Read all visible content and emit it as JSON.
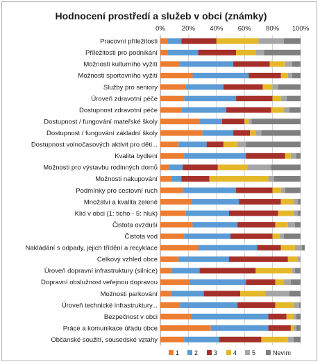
{
  "chart_data": {
    "type": "bar",
    "orientation": "horizontal",
    "stacked": "percent",
    "title": "Hodnocení prostředí a služeb v obci (známky)",
    "xlim": [
      0,
      100
    ],
    "x_ticks": [
      "0%",
      "20%",
      "40%",
      "60%",
      "80%",
      "100%"
    ],
    "grid": true,
    "legend_position": "bottom",
    "categories": [
      "Pracovní příležitosti",
      "Příležitosti pro podnikání",
      "Možnosti kulturního vyžití",
      "Možnosti sportovního vyžití",
      "Služby pro seniory",
      "Úroveň zdravotní péče",
      "Dostupnost zdravotní péče",
      "Dostupnost / fungování mateřské školy",
      "Dostupnost / fungování základní školy",
      "Dostupnost volnočasových aktivit pro děti...",
      "Kvalita bydlení",
      "Možnosti pro výstavbu rodinných domů",
      "Možnosti nakupování",
      "Podmínky pro cestovní ruch",
      "Množství a kvalita zeleně",
      "Klid v obci (1: ticho - 5: hluk)",
      "Čistota ovzduší",
      "Čistota vod",
      "Nakládání s odpady, jejich třídění a recyklace",
      "Celkový vzhled obce",
      "Úroveň dopravní infrastruktury (silnice)",
      "Dopravní obslužnost veřejnou dopravou",
      "Možnosti parkování",
      "Úroveň technické infrastruktury...",
      "Bezpečnost v obci",
      "Práce a komunikace úřadu obce",
      "Občanské soužití, sousedské vztahy"
    ],
    "series": [
      {
        "name": "1",
        "color": "#ED7D31",
        "values": [
          5,
          5,
          14,
          23,
          18,
          17,
          15,
          28,
          30,
          13,
          17,
          6,
          8,
          16,
          22,
          18,
          23,
          17,
          27,
          13,
          8,
          21,
          8,
          14,
          22,
          36,
          17
        ]
      },
      {
        "name": "2",
        "color": "#5B9BD5",
        "values": [
          10,
          22,
          38,
          40,
          27,
          37,
          32,
          16,
          22,
          20,
          44,
          10,
          7,
          38,
          34,
          31,
          32,
          33,
          42,
          36,
          20,
          40,
          23,
          41,
          55,
          41,
          25
        ]
      },
      {
        "name": "3",
        "color": "#A5302A",
        "values": [
          25,
          27,
          26,
          23,
          28,
          26,
          32,
          16,
          12,
          12,
          28,
          25,
          20,
          26,
          30,
          35,
          27,
          30,
          17,
          42,
          40,
          21,
          26,
          27,
          13,
          16,
          30
        ]
      },
      {
        "name": "4",
        "color": "#E5B82A",
        "values": [
          30,
          14,
          11,
          5,
          7,
          6,
          9,
          3,
          4,
          10,
          4,
          21,
          42,
          6,
          9,
          11,
          9,
          5,
          10,
          7,
          26,
          6,
          18,
          13,
          5,
          2,
          19
        ]
      },
      {
        "name": "5",
        "color": "#A5A5A5",
        "values": [
          18,
          6,
          5,
          3,
          4,
          4,
          4,
          2,
          4,
          6,
          4,
          17,
          4,
          3,
          3,
          3,
          5,
          3,
          5,
          2,
          2,
          5,
          17,
          4,
          2,
          2,
          4
        ]
      },
      {
        "name": "Nevím",
        "color": "#7F7F7F",
        "values": [
          12,
          26,
          6,
          6,
          16,
          10,
          8,
          35,
          28,
          39,
          3,
          21,
          19,
          11,
          2,
          2,
          4,
          12,
          2,
          0,
          4,
          7,
          8,
          1,
          3,
          3,
          5
        ]
      }
    ]
  }
}
